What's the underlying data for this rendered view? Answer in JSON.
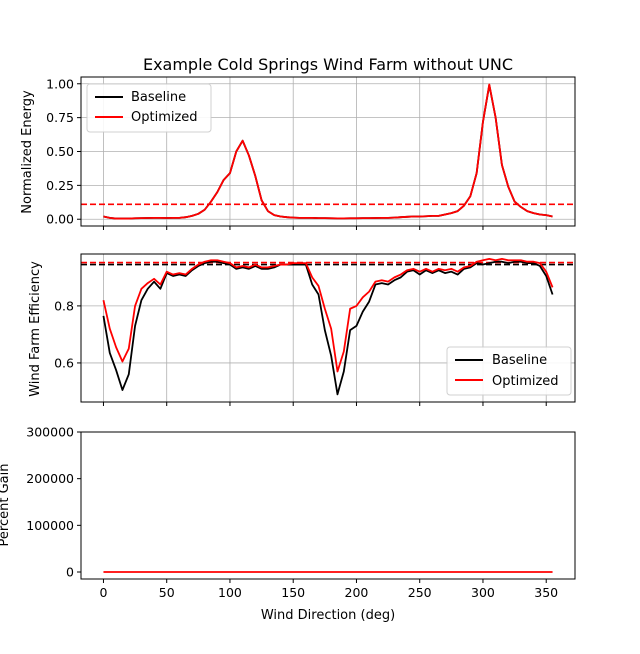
{
  "colors": {
    "baseline": "#000000",
    "optimized": "#ff0000",
    "grid": "#b0b0b0"
  },
  "chart_data": [
    {
      "type": "line",
      "title": "Example Cold Springs Wind Farm without UNC",
      "xlabel": "",
      "ylabel": "Normalized Energy",
      "xlim": [
        -17.75,
        372.75
      ],
      "ylim": [
        -0.05,
        1.05
      ],
      "grid": true,
      "legend": "upper-left",
      "xticks": [
        0,
        50,
        100,
        150,
        200,
        250,
        300,
        350
      ],
      "yticks": [
        0.0,
        0.25,
        0.5,
        0.75,
        1.0
      ],
      "ytick_labels": [
        "0.00",
        "0.25",
        "0.50",
        "0.75",
        "1.00"
      ],
      "x": [
        0,
        5,
        10,
        15,
        20,
        25,
        30,
        35,
        40,
        45,
        50,
        55,
        60,
        65,
        70,
        75,
        80,
        85,
        90,
        95,
        100,
        105,
        110,
        115,
        120,
        125,
        130,
        135,
        140,
        145,
        150,
        155,
        160,
        165,
        170,
        175,
        180,
        185,
        190,
        195,
        200,
        205,
        210,
        215,
        220,
        225,
        230,
        235,
        240,
        245,
        250,
        255,
        260,
        265,
        270,
        275,
        280,
        285,
        290,
        295,
        300,
        305,
        310,
        315,
        320,
        325,
        330,
        335,
        340,
        345,
        350,
        355
      ],
      "series": [
        {
          "name": "Baseline",
          "color": "#000000",
          "values": [
            0.02,
            0.01,
            0.005,
            0.005,
            0.005,
            0.007,
            0.008,
            0.009,
            0.01,
            0.01,
            0.009,
            0.01,
            0.01,
            0.015,
            0.025,
            0.04,
            0.07,
            0.13,
            0.2,
            0.29,
            0.34,
            0.5,
            0.58,
            0.47,
            0.32,
            0.14,
            0.06,
            0.03,
            0.02,
            0.015,
            0.012,
            0.01,
            0.01,
            0.01,
            0.008,
            0.008,
            0.007,
            0.006,
            0.006,
            0.007,
            0.007,
            0.008,
            0.008,
            0.009,
            0.01,
            0.01,
            0.012,
            0.015,
            0.018,
            0.02,
            0.02,
            0.022,
            0.025,
            0.025,
            0.035,
            0.045,
            0.06,
            0.1,
            0.17,
            0.34,
            0.72,
            0.99,
            0.75,
            0.4,
            0.24,
            0.13,
            0.09,
            0.06,
            0.045,
            0.035,
            0.03,
            0.02
          ]
        },
        {
          "name": "Optimized",
          "color": "#ff0000",
          "values": [
            0.02,
            0.01,
            0.005,
            0.005,
            0.005,
            0.007,
            0.008,
            0.009,
            0.01,
            0.01,
            0.009,
            0.01,
            0.01,
            0.015,
            0.025,
            0.04,
            0.07,
            0.13,
            0.2,
            0.29,
            0.34,
            0.5,
            0.58,
            0.47,
            0.32,
            0.14,
            0.06,
            0.03,
            0.02,
            0.015,
            0.012,
            0.01,
            0.01,
            0.01,
            0.008,
            0.008,
            0.007,
            0.006,
            0.006,
            0.007,
            0.007,
            0.008,
            0.008,
            0.009,
            0.01,
            0.01,
            0.012,
            0.015,
            0.018,
            0.02,
            0.02,
            0.022,
            0.025,
            0.025,
            0.035,
            0.045,
            0.06,
            0.1,
            0.17,
            0.34,
            0.72,
            0.995,
            0.75,
            0.4,
            0.24,
            0.13,
            0.09,
            0.06,
            0.045,
            0.035,
            0.03,
            0.02
          ]
        }
      ],
      "hlines": [
        {
          "y": 0.11,
          "color": "#ff0000",
          "style": "dashed"
        }
      ]
    },
    {
      "type": "line",
      "title": "",
      "xlabel": "",
      "ylabel": "Wind Farm Efficiency",
      "xlim": [
        -17.75,
        372.75
      ],
      "ylim": [
        0.463,
        0.982
      ],
      "grid": true,
      "legend": "lower-right",
      "xticks": [
        0,
        50,
        100,
        150,
        200,
        250,
        300,
        350
      ],
      "yticks": [
        0.6,
        0.8
      ],
      "ytick_labels": [
        "0.6",
        "0.8"
      ],
      "x": [
        0,
        5,
        10,
        15,
        20,
        25,
        30,
        35,
        40,
        45,
        50,
        55,
        60,
        65,
        70,
        75,
        80,
        85,
        90,
        95,
        100,
        105,
        110,
        115,
        120,
        125,
        130,
        135,
        140,
        145,
        150,
        155,
        160,
        165,
        170,
        175,
        180,
        185,
        190,
        195,
        200,
        205,
        210,
        215,
        220,
        225,
        230,
        235,
        240,
        245,
        250,
        255,
        260,
        265,
        270,
        275,
        280,
        285,
        290,
        295,
        300,
        305,
        310,
        315,
        320,
        325,
        330,
        335,
        340,
        345,
        350,
        355
      ],
      "series": [
        {
          "name": "Baseline",
          "color": "#000000",
          "values": [
            0.765,
            0.635,
            0.575,
            0.505,
            0.56,
            0.73,
            0.82,
            0.86,
            0.885,
            0.86,
            0.915,
            0.905,
            0.91,
            0.905,
            0.925,
            0.94,
            0.95,
            0.955,
            0.955,
            0.95,
            0.945,
            0.93,
            0.935,
            0.93,
            0.94,
            0.93,
            0.93,
            0.935,
            0.945,
            0.945,
            0.945,
            0.945,
            0.945,
            0.875,
            0.84,
            0.715,
            0.625,
            0.49,
            0.57,
            0.715,
            0.73,
            0.78,
            0.815,
            0.875,
            0.88,
            0.875,
            0.89,
            0.9,
            0.92,
            0.925,
            0.91,
            0.925,
            0.915,
            0.925,
            0.915,
            0.92,
            0.91,
            0.93,
            0.935,
            0.95,
            0.945,
            0.95,
            0.955,
            0.955,
            0.95,
            0.955,
            0.955,
            0.95,
            0.95,
            0.94,
            0.905,
            0.84
          ]
        },
        {
          "name": "Optimized",
          "color": "#ff0000",
          "values": [
            0.82,
            0.72,
            0.655,
            0.605,
            0.65,
            0.8,
            0.86,
            0.88,
            0.895,
            0.875,
            0.92,
            0.91,
            0.915,
            0.91,
            0.93,
            0.945,
            0.955,
            0.96,
            0.96,
            0.955,
            0.95,
            0.935,
            0.94,
            0.935,
            0.945,
            0.935,
            0.935,
            0.94,
            0.945,
            0.945,
            0.95,
            0.95,
            0.95,
            0.9,
            0.87,
            0.79,
            0.72,
            0.57,
            0.64,
            0.79,
            0.8,
            0.83,
            0.85,
            0.885,
            0.89,
            0.885,
            0.9,
            0.91,
            0.925,
            0.93,
            0.92,
            0.93,
            0.92,
            0.93,
            0.925,
            0.93,
            0.92,
            0.935,
            0.94,
            0.955,
            0.96,
            0.965,
            0.96,
            0.965,
            0.96,
            0.96,
            0.96,
            0.955,
            0.955,
            0.95,
            0.92,
            0.865
          ]
        }
      ],
      "hlines": [
        {
          "y": 0.945,
          "color": "#000000",
          "style": "dashed"
        },
        {
          "y": 0.952,
          "color": "#ff0000",
          "style": "dashed"
        }
      ]
    },
    {
      "type": "line",
      "title": "",
      "xlabel": "Wind Direction (deg)",
      "ylabel": "Percent Gain",
      "xlim": [
        -17.75,
        372.75
      ],
      "ylim": [
        -15000,
        300000
      ],
      "grid": false,
      "xticks": [
        0,
        50,
        100,
        150,
        200,
        250,
        300,
        350
      ],
      "xtick_labels": [
        "0",
        "50",
        "100",
        "150",
        "200",
        "250",
        "300",
        "350"
      ],
      "yticks": [
        0,
        100000,
        200000,
        300000
      ],
      "ytick_labels": [
        "0",
        "100000",
        "200000",
        "300000"
      ],
      "x": [
        0,
        355
      ],
      "series": [
        {
          "name": "",
          "color": "#ff0000",
          "values": [
            0,
            0
          ]
        }
      ]
    }
  ],
  "legend": {
    "baseline_label": "Baseline",
    "optimized_label": "Optimized"
  }
}
